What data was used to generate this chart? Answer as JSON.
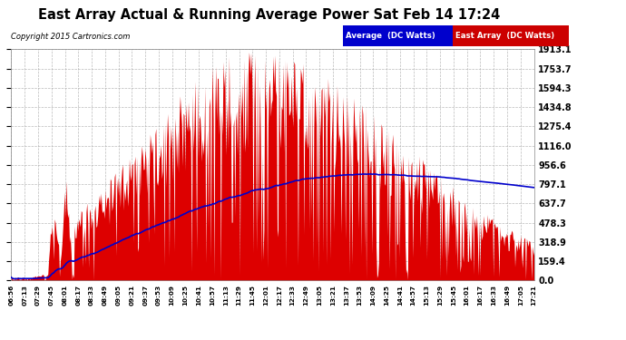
{
  "title": "East Array Actual & Running Average Power Sat Feb 14 17:24",
  "copyright": "Copyright 2015 Cartronics.com",
  "legend_labels": [
    "Average  (DC Watts)",
    "East Array  (DC Watts)"
  ],
  "yticks": [
    0.0,
    159.4,
    318.9,
    478.3,
    637.7,
    797.1,
    956.6,
    1116.0,
    1275.4,
    1434.8,
    1594.3,
    1753.7,
    1913.1
  ],
  "ymax": 1913.1,
  "ymin": 0.0,
  "fig_bg_color": "#ffffff",
  "plot_bg_color": "#ffffff",
  "grid_color": "#aaaaaa",
  "area_color": "#dd0000",
  "line_color": "#0000cc",
  "xtick_labels": [
    "06:56",
    "07:13",
    "07:29",
    "07:45",
    "08:01",
    "08:17",
    "08:33",
    "08:49",
    "09:05",
    "09:21",
    "09:37",
    "09:53",
    "10:09",
    "10:25",
    "10:41",
    "10:57",
    "11:13",
    "11:29",
    "11:45",
    "12:01",
    "12:17",
    "12:33",
    "12:49",
    "13:05",
    "13:21",
    "13:37",
    "13:53",
    "14:09",
    "14:25",
    "14:41",
    "14:57",
    "15:13",
    "15:29",
    "15:45",
    "16:01",
    "16:17",
    "16:33",
    "16:49",
    "17:05",
    "17:21"
  ],
  "legend_blue_color": "#0000cc",
  "legend_red_color": "#cc0000"
}
